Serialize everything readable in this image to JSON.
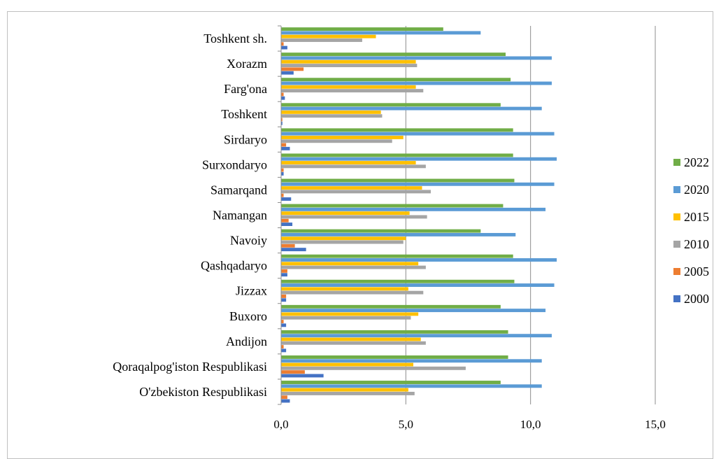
{
  "chart_data": {
    "type": "bar",
    "orientation": "horizontal",
    "title": "",
    "xlabel": "",
    "ylabel": "",
    "xlim": [
      0,
      15
    ],
    "x_ticks": [
      "0,0",
      "5,0",
      "10,0",
      "15,0"
    ],
    "grid": "vertical",
    "legend_position": "right",
    "categories": [
      "Toshkent sh.",
      "Xorazm",
      "Farg'ona",
      "Toshkent",
      "Sirdaryo",
      "Surxondaryo",
      "Samarqand",
      "Namangan",
      "Navoiy",
      "Qashqadaryo",
      "Jizzax",
      "Buxoro",
      "Andijon",
      "Qoraqalpog'iston Respublikasi",
      "O'zbekiston Respublikasi"
    ],
    "series": [
      {
        "name": "2022",
        "color": "#70ad47",
        "values": [
          6.5,
          9.0,
          9.2,
          8.8,
          9.3,
          9.3,
          9.35,
          8.9,
          8.0,
          9.3,
          9.35,
          8.8,
          9.1,
          9.1,
          8.8
        ]
      },
      {
        "name": "2020",
        "color": "#5b9bd5",
        "values": [
          8.0,
          10.85,
          10.85,
          10.45,
          10.95,
          11.05,
          10.95,
          10.6,
          9.4,
          11.05,
          10.95,
          10.6,
          10.85,
          10.45,
          10.45
        ]
      },
      {
        "name": "2015",
        "color": "#ffc000",
        "values": [
          3.8,
          5.4,
          5.4,
          4.0,
          4.9,
          5.4,
          5.65,
          5.15,
          5.0,
          5.5,
          5.1,
          5.5,
          5.6,
          5.3,
          5.1
        ]
      },
      {
        "name": "2010",
        "color": "#a5a5a5",
        "values": [
          3.25,
          5.45,
          5.7,
          4.05,
          4.45,
          5.8,
          6.0,
          5.85,
          4.9,
          5.8,
          5.7,
          5.2,
          5.8,
          7.4,
          5.35
        ]
      },
      {
        "name": "2005",
        "color": "#ed7d31",
        "values": [
          0.1,
          0.9,
          0.1,
          0.05,
          0.2,
          0.1,
          0.1,
          0.3,
          0.55,
          0.25,
          0.2,
          0.1,
          0.1,
          0.95,
          0.25
        ]
      },
      {
        "name": "2000",
        "color": "#4472c4",
        "values": [
          0.25,
          0.5,
          0.15,
          0.05,
          0.35,
          0.1,
          0.4,
          0.45,
          1.0,
          0.25,
          0.2,
          0.2,
          0.2,
          1.7,
          0.35
        ]
      }
    ]
  }
}
